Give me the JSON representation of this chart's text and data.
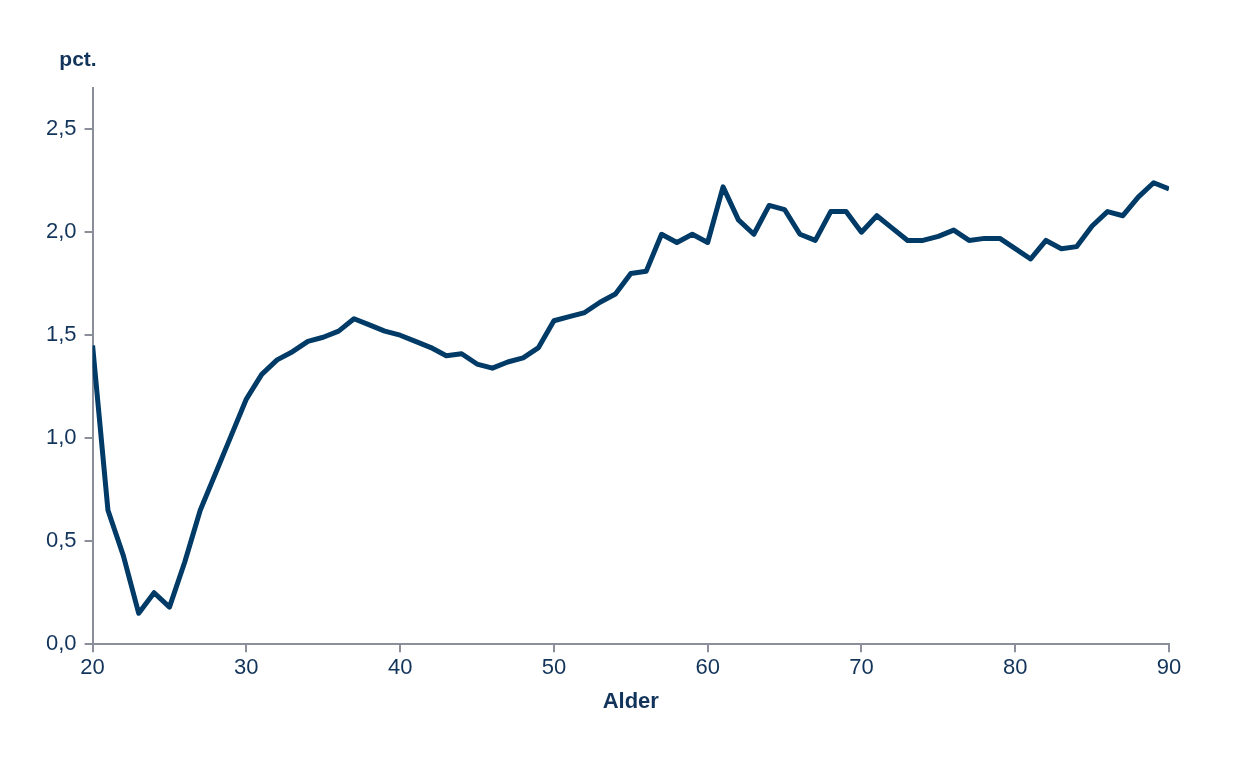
{
  "chart_data": {
    "type": "line",
    "ylabel": "pct.",
    "xlabel": "Alder",
    "x": [
      20,
      21,
      22,
      23,
      24,
      25,
      26,
      27,
      28,
      29,
      30,
      31,
      32,
      33,
      34,
      35,
      36,
      37,
      38,
      39,
      40,
      41,
      42,
      43,
      44,
      45,
      46,
      47,
      48,
      49,
      50,
      51,
      52,
      53,
      54,
      55,
      56,
      57,
      58,
      59,
      60,
      61,
      62,
      63,
      64,
      65,
      66,
      67,
      68,
      69,
      70,
      71,
      72,
      73,
      74,
      75,
      76,
      77,
      78,
      79,
      80,
      81,
      82,
      83,
      84,
      85,
      86,
      87,
      88,
      89,
      90
    ],
    "series": [
      {
        "color": "#003a66",
        "values": [
          1.45,
          0.65,
          0.43,
          0.15,
          0.25,
          0.18,
          0.4,
          0.65,
          0.83,
          1.01,
          1.19,
          1.31,
          1.38,
          1.42,
          1.47,
          1.49,
          1.52,
          1.58,
          1.55,
          1.52,
          1.5,
          1.47,
          1.44,
          1.4,
          1.41,
          1.36,
          1.34,
          1.37,
          1.39,
          1.44,
          1.57,
          1.59,
          1.61,
          1.66,
          1.7,
          1.8,
          1.81,
          1.99,
          1.95,
          1.99,
          1.95,
          2.22,
          2.06,
          1.99,
          2.13,
          2.11,
          1.99,
          1.96,
          2.1,
          2.1,
          2.0,
          2.08,
          2.02,
          1.96,
          1.96,
          1.98,
          2.01,
          1.96,
          1.97,
          1.97,
          1.92,
          1.87,
          1.96,
          1.92,
          1.93,
          2.03,
          2.1,
          2.08,
          2.17,
          2.24,
          2.21
        ]
      }
    ],
    "xlim": [
      20,
      90
    ],
    "xticks": [
      20,
      30,
      40,
      50,
      60,
      70,
      80,
      90
    ],
    "ylim": [
      0,
      2.7
    ],
    "yticks": [
      {
        "value": 0,
        "label": "0,0"
      },
      {
        "value": 0.5,
        "label": "0,5"
      },
      {
        "value": 1,
        "label": "1,0"
      },
      {
        "value": 1.5,
        "label": "1,5"
      },
      {
        "value": 2,
        "label": "2,0"
      },
      {
        "value": 2.5,
        "label": "2,5"
      }
    ],
    "grid": false,
    "legend": false,
    "marker": "none",
    "line_style": "solid"
  }
}
